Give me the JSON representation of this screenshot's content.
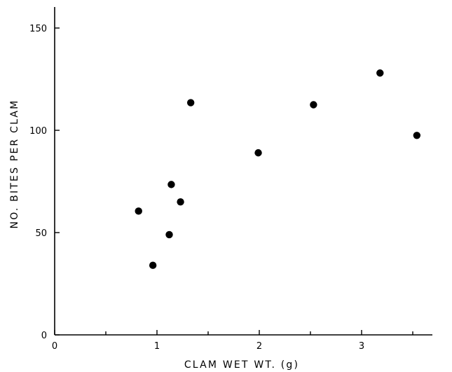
{
  "chart_data": {
    "type": "scatter",
    "title": "",
    "xlabel": "CLAM  WET  WT.  (g)",
    "ylabel": "NO.  BITES  PER  CLAM",
    "xlim": [
      0,
      3.85
    ],
    "ylim": [
      0,
      160
    ],
    "x_ticks": [
      0,
      1,
      2,
      3
    ],
    "x_minor_ticks": [
      0.5,
      1.5,
      2.5,
      3.5
    ],
    "y_ticks": [
      0,
      50,
      100,
      150
    ],
    "x_tick_labels": [
      "0",
      "1",
      "2",
      "3"
    ],
    "y_tick_labels": [
      "0",
      "50",
      "100",
      "150"
    ],
    "grid": false,
    "points": [
      {
        "x": 0.82,
        "y": 60.5
      },
      {
        "x": 0.96,
        "y": 34
      },
      {
        "x": 1.12,
        "y": 49
      },
      {
        "x": 1.14,
        "y": 73.5
      },
      {
        "x": 1.23,
        "y": 65
      },
      {
        "x": 1.33,
        "y": 113.5
      },
      {
        "x": 1.99,
        "y": 89
      },
      {
        "x": 2.53,
        "y": 112.5
      },
      {
        "x": 3.18,
        "y": 128
      },
      {
        "x": 3.54,
        "y": 97.5
      }
    ],
    "marker_color": "#000000"
  }
}
